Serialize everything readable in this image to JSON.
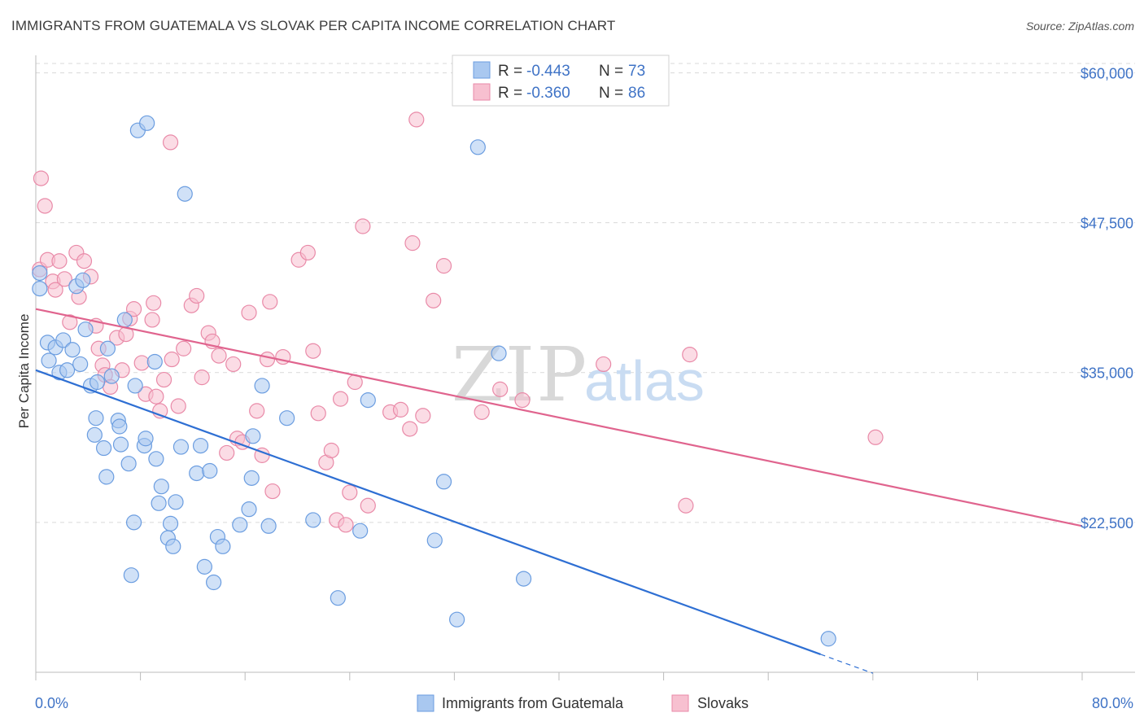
{
  "title": "IMMIGRANTS FROM GUATEMALA VS SLOVAK PER CAPITA INCOME CORRELATION CHART",
  "source": "Source: ZipAtlas.com",
  "watermark": {
    "zip": "ZIP",
    "atlas": "atlas"
  },
  "colors": {
    "blue_fill": "#a9c8f0",
    "blue_stroke": "#6b9de0",
    "blue_line": "#2e6fd3",
    "pink_fill": "#f7c0d0",
    "pink_stroke": "#e98aa8",
    "pink_line": "#e0648e",
    "grid": "#d9d9d9",
    "label": "#3f73c6"
  },
  "legend": {
    "rows": [
      {
        "r_label": "R =",
        "r_value": "-0.443",
        "n_label": "N =",
        "n_value": "73"
      },
      {
        "r_label": "R =",
        "r_value": "-0.360",
        "n_label": "N =",
        "n_value": "86"
      }
    ]
  },
  "chart_data": {
    "type": "scatter",
    "xlabel": "",
    "ylabel": "Per Capita Income",
    "xlim": [
      0,
      80
    ],
    "ylim": [
      10000,
      62000
    ],
    "x_tick_labels": {
      "left": "0.0%",
      "right": "80.0%"
    },
    "y_ticks": [
      22500,
      35000,
      47500,
      60000
    ],
    "y_tick_labels": [
      "$22,500",
      "$35,000",
      "$47,500",
      "$60,000"
    ],
    "grid": true,
    "legend_position": "bottom",
    "series": [
      {
        "name": "Immigrants from Guatemala",
        "color": "#a9c8f0",
        "trend": {
          "x0": 0,
          "y0": 35200,
          "x1": 60,
          "y1": 11500,
          "dash_to_x": 64
        },
        "points": [
          [
            0.3,
            42000
          ],
          [
            0.3,
            43300
          ],
          [
            1,
            36000
          ],
          [
            0.9,
            37500
          ],
          [
            1.5,
            37100
          ],
          [
            1.8,
            35000
          ],
          [
            2.1,
            37700
          ],
          [
            2.4,
            35200
          ],
          [
            2.8,
            36900
          ],
          [
            3.1,
            42200
          ],
          [
            3.4,
            35700
          ],
          [
            3.6,
            42700
          ],
          [
            3.8,
            38600
          ],
          [
            4.2,
            33900
          ],
          [
            4.5,
            29800
          ],
          [
            4.6,
            31200
          ],
          [
            4.7,
            34200
          ],
          [
            5.2,
            28700
          ],
          [
            5.4,
            26300
          ],
          [
            5.5,
            37000
          ],
          [
            5.8,
            34700
          ],
          [
            6.3,
            31000
          ],
          [
            6.4,
            30500
          ],
          [
            6.5,
            29000
          ],
          [
            6.8,
            39400
          ],
          [
            7.1,
            27400
          ],
          [
            7.3,
            18100
          ],
          [
            7.5,
            22500
          ],
          [
            7.6,
            33900
          ],
          [
            7.8,
            55200
          ],
          [
            8.3,
            28900
          ],
          [
            8.4,
            29500
          ],
          [
            8.5,
            55800
          ],
          [
            9.1,
            35900
          ],
          [
            9.2,
            27800
          ],
          [
            9.4,
            24100
          ],
          [
            9.6,
            25500
          ],
          [
            10.1,
            21200
          ],
          [
            10.3,
            22400
          ],
          [
            10.5,
            20500
          ],
          [
            10.7,
            24200
          ],
          [
            11.1,
            28800
          ],
          [
            11.4,
            49900
          ],
          [
            12.3,
            26600
          ],
          [
            12.6,
            28900
          ],
          [
            12.9,
            18800
          ],
          [
            13.3,
            26800
          ],
          [
            13.6,
            17500
          ],
          [
            13.9,
            21300
          ],
          [
            14.3,
            20500
          ],
          [
            15.6,
            22300
          ],
          [
            16.3,
            23600
          ],
          [
            16.5,
            26200
          ],
          [
            16.6,
            29700
          ],
          [
            17.3,
            33900
          ],
          [
            17.8,
            22200
          ],
          [
            19.2,
            31200
          ],
          [
            21.2,
            22700
          ],
          [
            23.1,
            16200
          ],
          [
            24.8,
            21800
          ],
          [
            25.4,
            32700
          ],
          [
            30.5,
            21000
          ],
          [
            31.2,
            25900
          ],
          [
            32.2,
            14400
          ],
          [
            33.8,
            53800
          ],
          [
            35.4,
            36600
          ],
          [
            37.3,
            17800
          ],
          [
            60.6,
            12800
          ]
        ]
      },
      {
        "name": "Slovaks",
        "color": "#f7c0d0",
        "trend": {
          "x0": 0,
          "y0": 40300,
          "x1": 80,
          "y1": 22200
        },
        "points": [
          [
            0.3,
            43600
          ],
          [
            0.4,
            51200
          ],
          [
            0.7,
            48900
          ],
          [
            0.9,
            44400
          ],
          [
            1.3,
            42600
          ],
          [
            1.5,
            41900
          ],
          [
            1.8,
            44300
          ],
          [
            2.2,
            42800
          ],
          [
            2.6,
            39200
          ],
          [
            3.1,
            45000
          ],
          [
            3.3,
            41300
          ],
          [
            3.7,
            44300
          ],
          [
            4.2,
            43000
          ],
          [
            4.6,
            38900
          ],
          [
            4.8,
            37000
          ],
          [
            5.1,
            35600
          ],
          [
            5.3,
            34800
          ],
          [
            5.7,
            33800
          ],
          [
            6.2,
            37900
          ],
          [
            6.6,
            35200
          ],
          [
            6.9,
            38200
          ],
          [
            7.2,
            39500
          ],
          [
            7.5,
            40300
          ],
          [
            8.1,
            35800
          ],
          [
            8.4,
            33200
          ],
          [
            8.9,
            39400
          ],
          [
            9.0,
            40800
          ],
          [
            9.2,
            33000
          ],
          [
            9.5,
            31800
          ],
          [
            9.8,
            34400
          ],
          [
            10.3,
            54200
          ],
          [
            10.4,
            36100
          ],
          [
            10.9,
            32200
          ],
          [
            11.3,
            37000
          ],
          [
            11.9,
            40600
          ],
          [
            12.3,
            41400
          ],
          [
            12.7,
            34600
          ],
          [
            13.2,
            38300
          ],
          [
            13.5,
            37600
          ],
          [
            14.0,
            36400
          ],
          [
            14.6,
            28300
          ],
          [
            15.1,
            35700
          ],
          [
            15.4,
            29500
          ],
          [
            15.8,
            29200
          ],
          [
            16.3,
            40000
          ],
          [
            16.9,
            31800
          ],
          [
            17.3,
            28100
          ],
          [
            17.7,
            36100
          ],
          [
            17.9,
            40900
          ],
          [
            18.1,
            25100
          ],
          [
            18.9,
            36300
          ],
          [
            20.1,
            44400
          ],
          [
            20.8,
            45000
          ],
          [
            21.2,
            36800
          ],
          [
            21.6,
            31600
          ],
          [
            22.2,
            27500
          ],
          [
            22.6,
            28500
          ],
          [
            23.0,
            22700
          ],
          [
            23.3,
            32800
          ],
          [
            23.7,
            22300
          ],
          [
            24.0,
            25000
          ],
          [
            24.4,
            34200
          ],
          [
            25.0,
            47200
          ],
          [
            25.4,
            23900
          ],
          [
            27.1,
            31700
          ],
          [
            27.9,
            31900
          ],
          [
            28.6,
            30300
          ],
          [
            28.8,
            45800
          ],
          [
            29.1,
            56100
          ],
          [
            29.6,
            31400
          ],
          [
            30.4,
            41000
          ],
          [
            31.2,
            43900
          ],
          [
            34.1,
            31700
          ],
          [
            35.5,
            33600
          ],
          [
            37.2,
            32700
          ],
          [
            43.4,
            35700
          ],
          [
            49.7,
            23900
          ],
          [
            50.0,
            36500
          ],
          [
            64.2,
            29600
          ]
        ]
      }
    ]
  }
}
